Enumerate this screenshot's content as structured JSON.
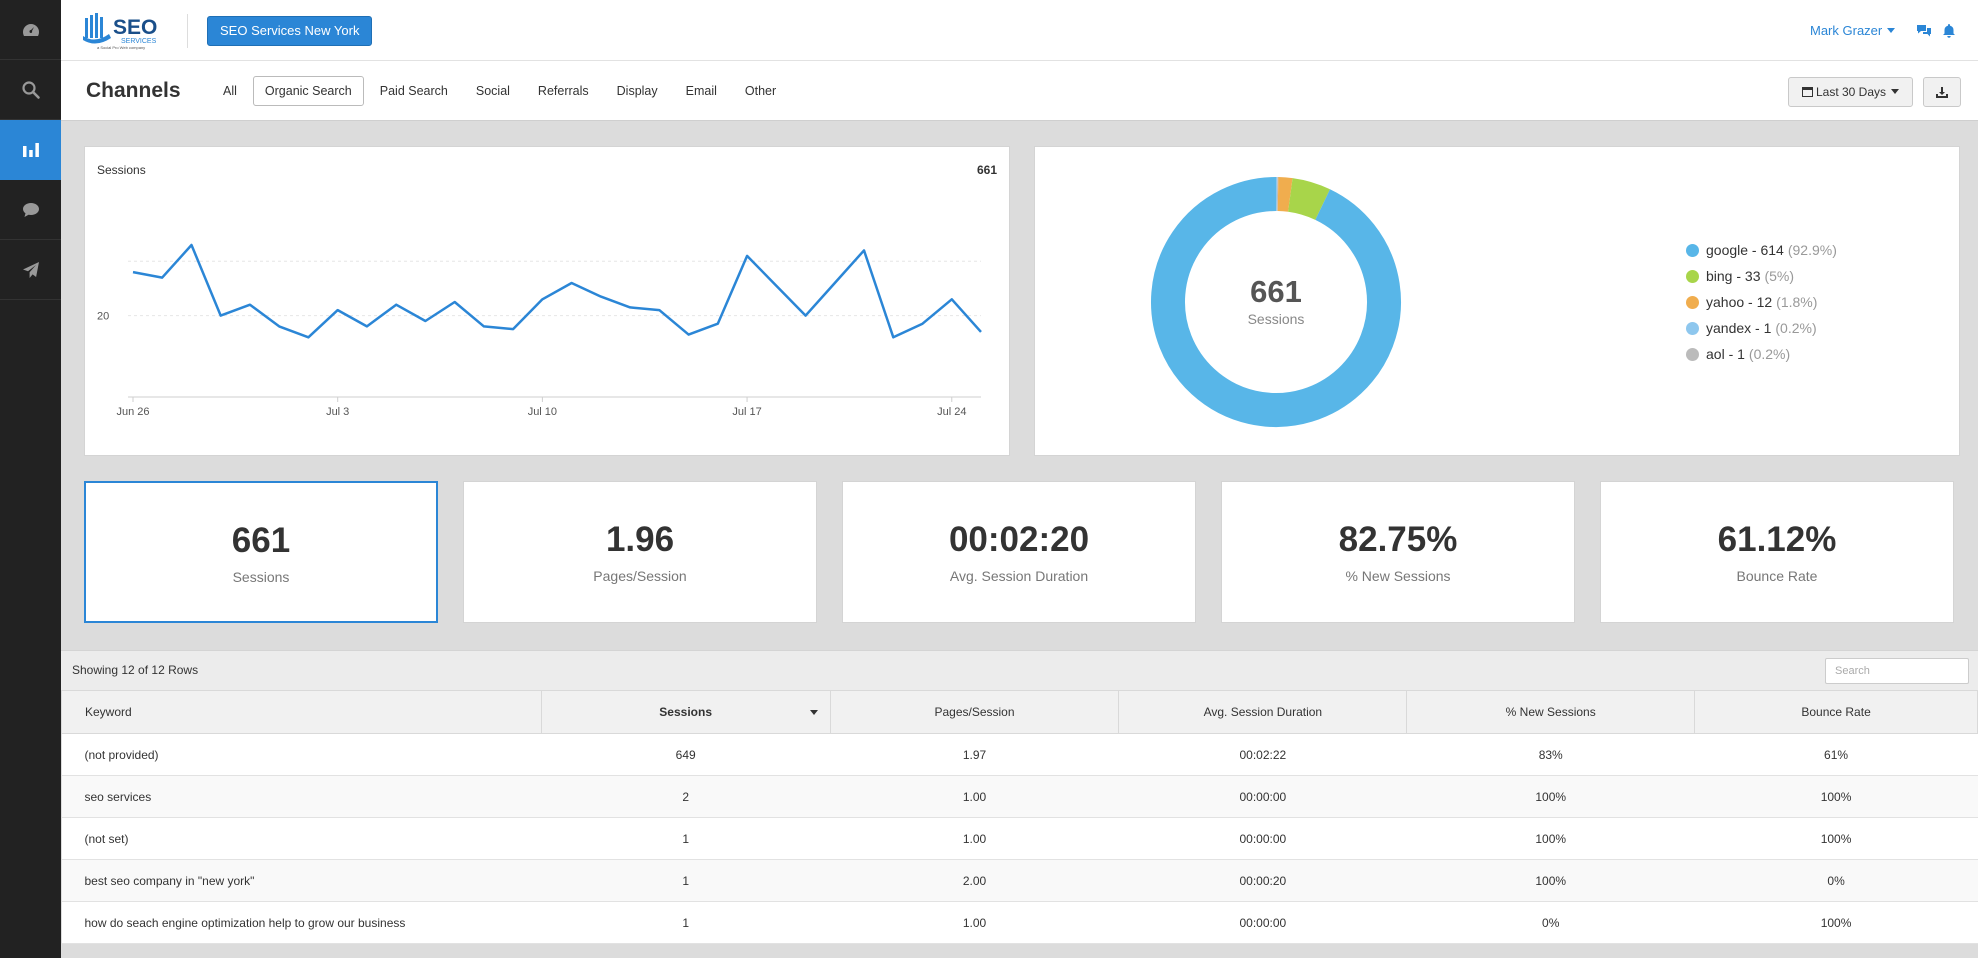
{
  "brand": {
    "logo_text": "SEO",
    "logo_sub": "SERVICES",
    "logo_tagline": "a Social Pro Web company",
    "account_button": "SEO Services New York"
  },
  "user": {
    "name": "Mark Grazer"
  },
  "sidebar": {
    "items": [
      {
        "icon": "dashboard-icon",
        "active": false
      },
      {
        "icon": "search-icon",
        "active": false
      },
      {
        "icon": "bar-chart-icon",
        "active": true
      },
      {
        "icon": "chat-icon",
        "active": false
      },
      {
        "icon": "send-icon",
        "active": false
      }
    ]
  },
  "header": {
    "title": "Channels",
    "tabs": [
      "All",
      "Organic Search",
      "Paid Search",
      "Social",
      "Referrals",
      "Display",
      "Email",
      "Other"
    ],
    "active_tab": "Organic Search",
    "date_range": "Last 30 Days"
  },
  "line_chart": {
    "label": "Sessions",
    "total": "661"
  },
  "donut": {
    "center_value": "661",
    "center_label": "Sessions"
  },
  "chart_data": [
    {
      "type": "line",
      "x": [
        "Jun 26",
        "Jun 27",
        "Jun 28",
        "Jun 29",
        "Jun 30",
        "Jul 1",
        "Jul 2",
        "Jul 3",
        "Jul 4",
        "Jul 5",
        "Jul 6",
        "Jul 7",
        "Jul 8",
        "Jul 9",
        "Jul 10",
        "Jul 11",
        "Jul 12",
        "Jul 13",
        "Jul 14",
        "Jul 15",
        "Jul 16",
        "Jul 17",
        "Jul 18",
        "Jul 19",
        "Jul 20",
        "Jul 21",
        "Jul 22",
        "Jul 23",
        "Jul 24",
        "Jul 25"
      ],
      "series": [
        {
          "values": [
            28,
            27,
            33,
            20,
            22,
            18,
            16,
            21,
            18,
            22,
            19,
            22.5,
            18,
            17.5,
            23,
            26,
            23.5,
            21.5,
            21,
            16.5,
            18.5,
            31,
            25.5,
            20,
            26,
            32,
            16,
            18.5,
            23,
            17
          ]
        }
      ],
      "x_ticks": [
        "Jun 26",
        "Jul 3",
        "Jul 10",
        "Jul 17",
        "Jul 24"
      ],
      "y_ticks": [
        20
      ],
      "ylim": [
        5,
        40
      ],
      "grid": true,
      "color": "#2b86d6"
    },
    {
      "type": "pie",
      "donut": true,
      "slices": [
        {
          "name": "google",
          "value": 614,
          "pct": "92.9%",
          "color": "#58b6e8"
        },
        {
          "name": "bing",
          "value": 33,
          "pct": "5%",
          "color": "#a8d54a"
        },
        {
          "name": "yahoo",
          "value": 12,
          "pct": "1.8%",
          "color": "#f0ad4e"
        },
        {
          "name": "yandex",
          "value": 1,
          "pct": "0.2%",
          "color": "#8ec7ee"
        },
        {
          "name": "aol",
          "value": 1,
          "pct": "0.2%",
          "color": "#bbbbbb"
        }
      ],
      "legend_placement": "right"
    }
  ],
  "legend": [
    {
      "label": "google - 614",
      "pct": "(92.9%)",
      "color": "#58b6e8"
    },
    {
      "label": "bing - 33",
      "pct": "(5%)",
      "color": "#a8d54a"
    },
    {
      "label": "yahoo - 12",
      "pct": "(1.8%)",
      "color": "#f0ad4e"
    },
    {
      "label": "yandex - 1",
      "pct": "(0.2%)",
      "color": "#8ec7ee"
    },
    {
      "label": "aol - 1",
      "pct": "(0.2%)",
      "color": "#bbbbbb"
    }
  ],
  "kpis": [
    {
      "value": "661",
      "label": "Sessions",
      "selected": true
    },
    {
      "value": "1.96",
      "label": "Pages/Session",
      "selected": false
    },
    {
      "value": "00:02:20",
      "label": "Avg. Session Duration",
      "selected": false
    },
    {
      "value": "82.75%",
      "label": "% New Sessions",
      "selected": false
    },
    {
      "value": "61.12%",
      "label": "Bounce Rate",
      "selected": false
    }
  ],
  "table": {
    "rows_info": "Showing 12 of 12 Rows",
    "search_placeholder": "Search",
    "columns": [
      "Keyword",
      "Sessions",
      "Pages/Session",
      "Avg. Session Duration",
      "% New Sessions",
      "Bounce Rate"
    ],
    "sorted_column": "Sessions",
    "rows": [
      [
        "(not provided)",
        "649",
        "1.97",
        "00:02:22",
        "83%",
        "61%"
      ],
      [
        "seo services",
        "2",
        "1.00",
        "00:00:00",
        "100%",
        "100%"
      ],
      [
        "(not set)",
        "1",
        "1.00",
        "00:00:00",
        "100%",
        "100%"
      ],
      [
        "best seo company in \"new york\"",
        "1",
        "2.00",
        "00:00:20",
        "100%",
        "0%"
      ],
      [
        "how do seach engine optimization help to grow our business",
        "1",
        "1.00",
        "00:00:00",
        "0%",
        "100%"
      ]
    ]
  },
  "colors": {
    "accent": "#2b86d6",
    "sidebar_bg": "#222222",
    "page_bg": "#dcdcdc"
  }
}
